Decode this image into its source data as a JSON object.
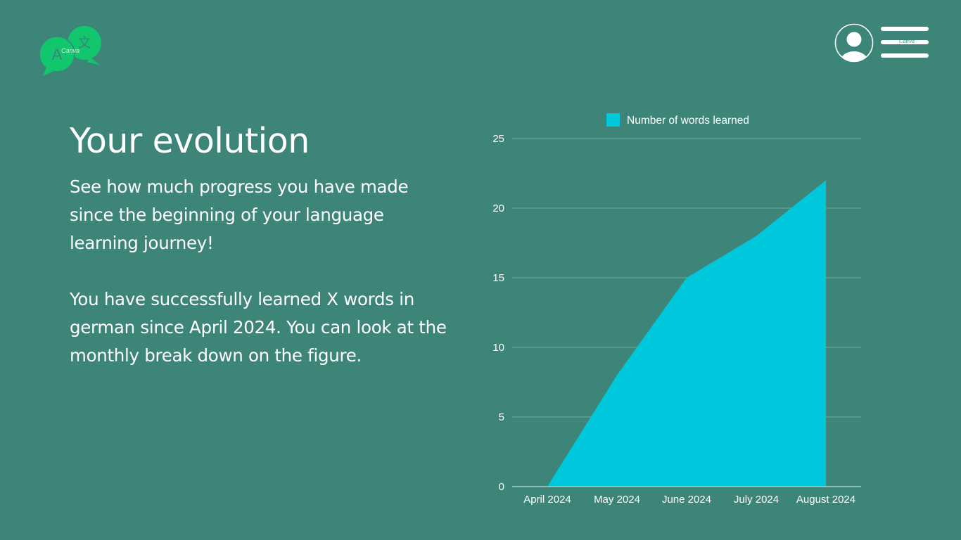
{
  "header": {
    "logo_icon": "translate-chat-bubbles-icon",
    "logo_watermark": "Canva",
    "logo_letters": [
      "A",
      "文"
    ],
    "profile_icon": "user-avatar-icon",
    "menu_icon": "hamburger-menu-icon",
    "menu_watermark": "Canva"
  },
  "main": {
    "title": "Your evolution",
    "paragraph1": "See how much progress you have made since the beginning of your language learning journey!",
    "paragraph2": "You have successfully learned X words in german since April 2024. You can look at the monthly break down on the figure."
  },
  "colors": {
    "background": "#3d8578",
    "area_fill": "#00c8dc",
    "logo_green": "#11c66d",
    "text": "#ffffff"
  },
  "chart_data": {
    "type": "area",
    "categories": [
      "April 2024",
      "May 2024",
      "June 2024",
      "July 2024",
      "August 2024"
    ],
    "series": [
      {
        "name": "Number of words learned",
        "values": [
          0,
          8,
          15,
          18,
          22
        ]
      }
    ],
    "ylim": [
      0,
      25
    ],
    "yticks": [
      0,
      5,
      10,
      15,
      20,
      25
    ],
    "grid": true,
    "legend": "top-center"
  }
}
